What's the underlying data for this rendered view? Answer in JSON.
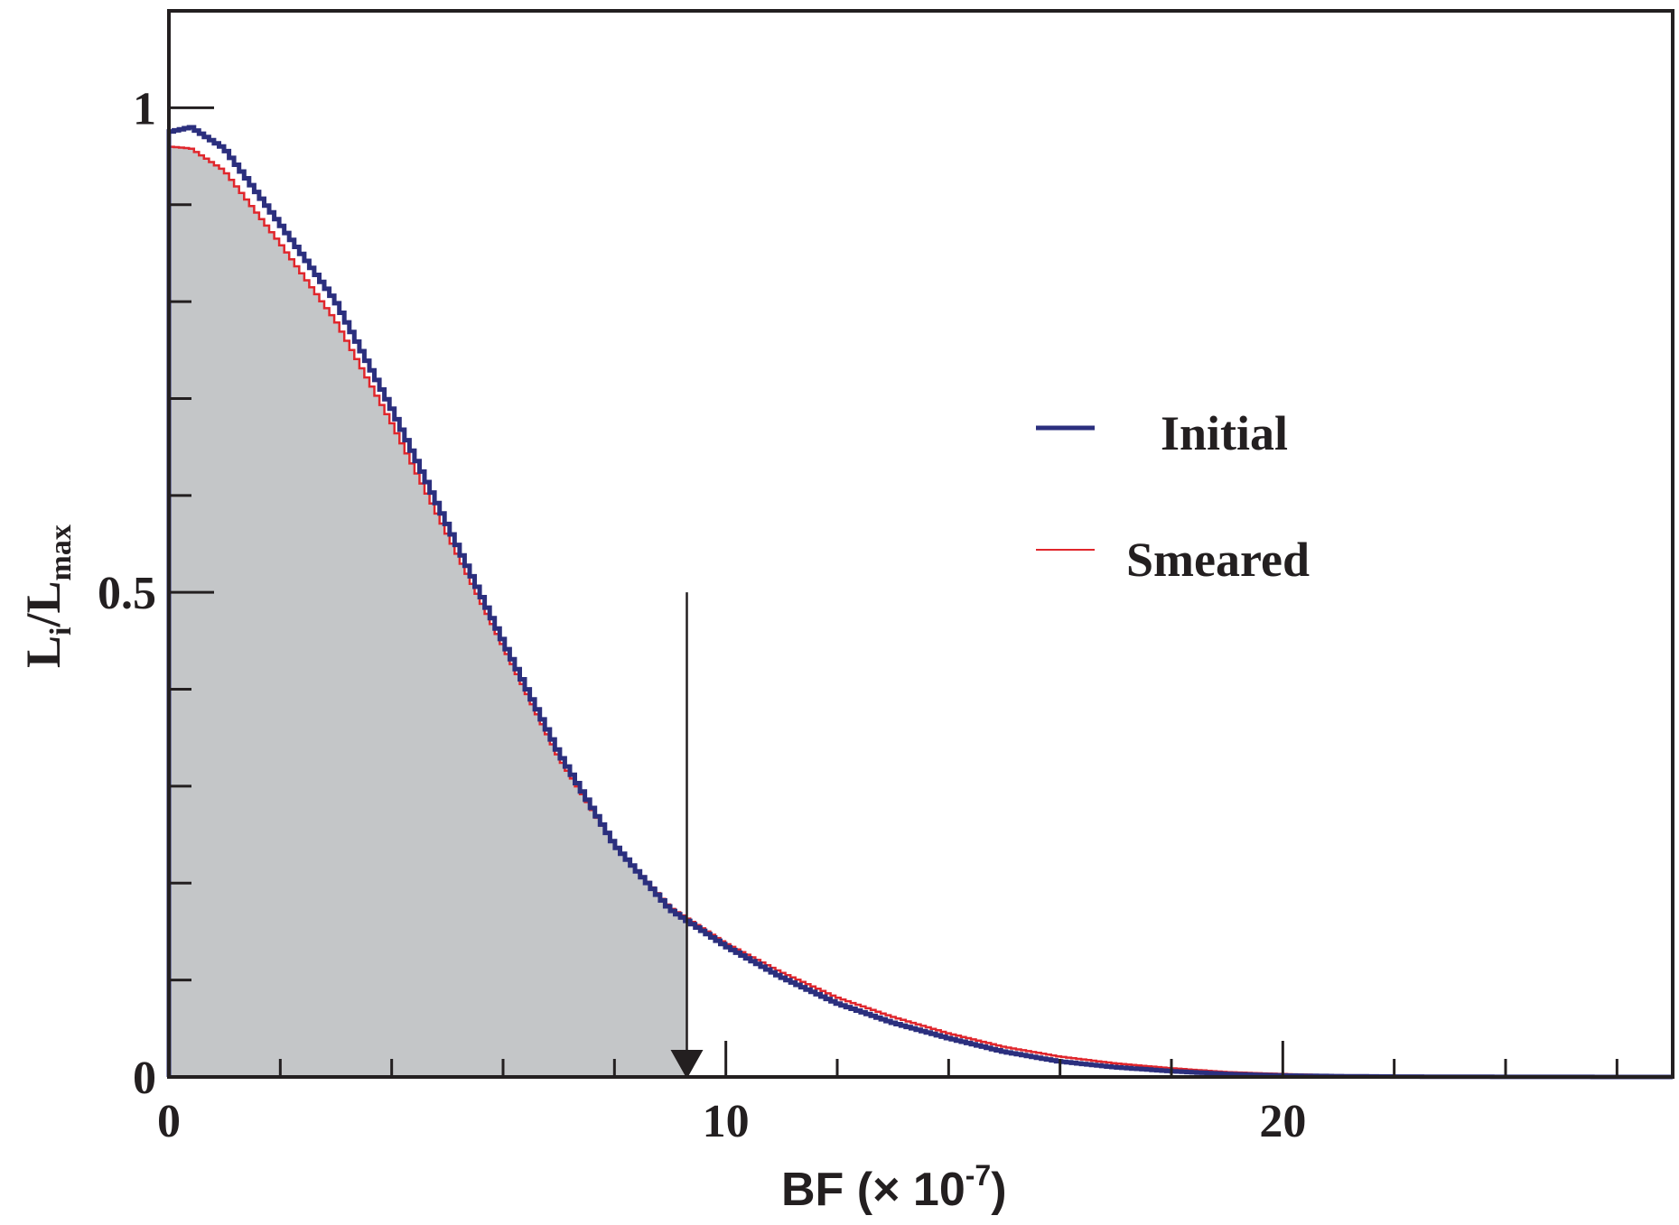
{
  "chart_data": {
    "type": "line",
    "xlabel": "BF (× 10",
    "xlabel_exponent": "-7",
    "xlabel_close": ")",
    "ylabel_main": "L",
    "ylabel_sub_i": "i",
    "ylabel_sep": "/L",
    "ylabel_sub_max": "max",
    "xlim": [
      0,
      27
    ],
    "ylim": [
      0,
      1.1
    ],
    "x_tick_labels": [
      "0",
      "10",
      "20"
    ],
    "x_tick_label_values": [
      0,
      10,
      20
    ],
    "x_minor_ticks": [
      2,
      4,
      6,
      8,
      12,
      14,
      16,
      18,
      22,
      24,
      26
    ],
    "y_tick_labels": [
      "0",
      "0.5",
      "1"
    ],
    "y_tick_label_values": [
      0,
      0.5,
      1
    ],
    "y_minor_ticks": [
      0.1,
      0.2,
      0.3,
      0.4,
      0.6,
      0.7,
      0.8,
      0.9
    ],
    "grid": false,
    "legend_position": "right",
    "series": [
      {
        "name": "Initial",
        "color": "#2b2f7e",
        "x": [
          0,
          0.4,
          1,
          2,
          3,
          4,
          5,
          6,
          7,
          8,
          9,
          10,
          11,
          12,
          13,
          14,
          15,
          16,
          17,
          18,
          19,
          20,
          21,
          22,
          24,
          27
        ],
        "y": [
          0.975,
          0.98,
          0.958,
          0.88,
          0.8,
          0.69,
          0.57,
          0.45,
          0.335,
          0.24,
          0.173,
          0.135,
          0.103,
          0.076,
          0.056,
          0.04,
          0.026,
          0.016,
          0.01,
          0.006,
          0.003,
          0.0015,
          0.0008,
          0.0004,
          0.0001,
          0
        ]
      },
      {
        "name": "Smeared",
        "color": "#e0262c",
        "x": [
          0,
          0.4,
          1,
          2,
          3,
          4,
          5,
          6,
          7,
          8,
          9,
          10,
          11,
          12,
          13,
          14,
          15,
          16,
          17,
          18,
          19,
          20,
          21,
          22,
          24,
          27
        ],
        "y": [
          0.96,
          0.958,
          0.935,
          0.86,
          0.78,
          0.675,
          0.56,
          0.445,
          0.33,
          0.24,
          0.175,
          0.138,
          0.108,
          0.082,
          0.062,
          0.045,
          0.031,
          0.021,
          0.014,
          0.009,
          0.005,
          0.003,
          0.0015,
          0.0008,
          0.0002,
          0
        ]
      }
    ],
    "shaded_region": {
      "from": 0,
      "to": 9.3,
      "color": "#c4c6c8"
    },
    "upper_limit_arrow": {
      "x": 9.3,
      "y_top": 0.5,
      "y_bottom": 0
    }
  }
}
